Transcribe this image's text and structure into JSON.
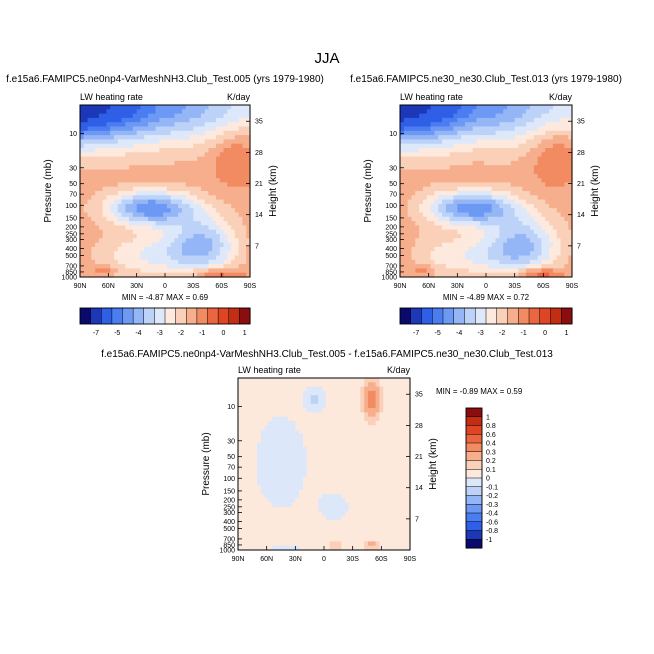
{
  "figure_title": "JJA",
  "chart_data": [
    {
      "type": "heatmap",
      "id": "panel-a",
      "title": "f.e15a6.FAMIPC5.ne0np4-VarMeshNH3.Club_Test.005 (yrs 1979-1980)",
      "variable": "LW heating rate",
      "units": "K/day",
      "ylabel": "Pressure (mb)",
      "ylabel_right": "Height (km)",
      "x_ticks": [
        "90N",
        "60N",
        "30N",
        "0",
        "30S",
        "60S",
        "90S"
      ],
      "xlim": [
        90,
        -90
      ],
      "y_ticks": [
        "10",
        "30",
        "50",
        "70",
        "100",
        "150",
        "200",
        "250",
        "300",
        "400",
        "500",
        "700",
        "850",
        "1000"
      ],
      "y_tick_values": [
        10,
        30,
        50,
        70,
        100,
        150,
        200,
        250,
        300,
        400,
        500,
        700,
        850,
        1000
      ],
      "height_ticks": [
        "35",
        "28",
        "21",
        "14",
        "7"
      ],
      "height_tick_values": [
        35,
        28,
        21,
        14,
        7
      ],
      "ylim": [
        1000,
        4
      ],
      "min": "-4.87",
      "max": "0.69",
      "stats": "MIN = -4.87  MAX = 0.69",
      "levels": [
        -7,
        -6,
        -5,
        -4.5,
        -4,
        -3.5,
        -3,
        -2.5,
        -2,
        -1.5,
        -1,
        -0.5,
        0,
        0.5,
        1
      ],
      "colorbar_labels": [
        "-7",
        "-5",
        "-4",
        "-3",
        "-2",
        "-1",
        "0",
        "1"
      ]
    },
    {
      "type": "heatmap",
      "id": "panel-b",
      "title": "f.e15a6.FAMIPC5.ne30_ne30.Club_Test.013 (yrs 1979-1980)",
      "variable": "LW heating rate",
      "units": "K/day",
      "ylabel": "Pressure (mb)",
      "ylabel_right": "Height (km)",
      "x_ticks": [
        "90N",
        "60N",
        "30N",
        "0",
        "30S",
        "60S",
        "90S"
      ],
      "xlim": [
        90,
        -90
      ],
      "y_ticks": [
        "10",
        "30",
        "50",
        "70",
        "100",
        "150",
        "200",
        "250",
        "300",
        "400",
        "500",
        "700",
        "850",
        "1000"
      ],
      "y_tick_values": [
        10,
        30,
        50,
        70,
        100,
        150,
        200,
        250,
        300,
        400,
        500,
        700,
        850,
        1000
      ],
      "height_ticks": [
        "35",
        "28",
        "21",
        "14",
        "7"
      ],
      "height_tick_values": [
        35,
        28,
        21,
        14,
        7
      ],
      "ylim": [
        1000,
        4
      ],
      "min": "-4.89",
      "max": "0.72",
      "stats": "MIN = -4.89  MAX = 0.72",
      "levels": [
        -7,
        -6,
        -5,
        -4.5,
        -4,
        -3.5,
        -3,
        -2.5,
        -2,
        -1.5,
        -1,
        -0.5,
        0,
        0.5,
        1
      ],
      "colorbar_labels": [
        "-7",
        "-5",
        "-4",
        "-3",
        "-2",
        "-1",
        "0",
        "1"
      ]
    },
    {
      "type": "heatmap",
      "id": "panel-diff",
      "title": "f.e15a6.FAMIPC5.ne0np4-VarMeshNH3.Club_Test.005 - f.e15a6.FAMIPC5.ne30_ne30.Club_Test.013",
      "variable": "LW heating rate",
      "units": "K/day",
      "ylabel": "Pressure (mb)",
      "ylabel_right": "Height (km)",
      "x_ticks": [
        "90N",
        "60N",
        "30N",
        "0",
        "30S",
        "60S",
        "90S"
      ],
      "xlim": [
        90,
        -90
      ],
      "y_ticks": [
        "10",
        "30",
        "50",
        "70",
        "100",
        "150",
        "200",
        "250",
        "300",
        "400",
        "500",
        "700",
        "850",
        "1000"
      ],
      "y_tick_values": [
        10,
        30,
        50,
        70,
        100,
        150,
        200,
        250,
        300,
        400,
        500,
        700,
        850,
        1000
      ],
      "height_ticks": [
        "35",
        "28",
        "21",
        "14",
        "7"
      ],
      "height_tick_values": [
        35,
        28,
        21,
        14,
        7
      ],
      "ylim": [
        1000,
        4
      ],
      "min": "-0.89",
      "max": "0.59",
      "stats": "MIN = -0.89  MAX = 0.59",
      "levels": [
        -1,
        -0.8,
        -0.6,
        -0.4,
        -0.3,
        -0.2,
        -0.1,
        0,
        0.1,
        0.2,
        0.3,
        0.4,
        0.6,
        0.8,
        1
      ],
      "colorbar_labels": [
        "1",
        "0.8",
        "0.6",
        "0.4",
        "0.3",
        "0.2",
        "0.1",
        "0",
        "-0.1",
        "-0.2",
        "-0.3",
        "-0.4",
        "-0.6",
        "-0.8",
        "-1"
      ]
    }
  ],
  "palettes": {
    "full": [
      "#0a0a6e",
      "#1c37b8",
      "#2f5fe6",
      "#4a7cf2",
      "#6d99f5",
      "#94b6f7",
      "#bcd2f8",
      "#dde8fa",
      "#fde9dd",
      "#fbd0b8",
      "#f7ae8d",
      "#f28a62",
      "#ea6540",
      "#dd4523",
      "#c22d14",
      "#8b0d0d"
    ],
    "diff": [
      "#0a0a6e",
      "#1c37b8",
      "#2f5fe6",
      "#4a7cf2",
      "#6d99f5",
      "#94b6f7",
      "#bcd2f8",
      "#dce8fa",
      "#fde8dc",
      "#fbd0b8",
      "#f7ae8d",
      "#f28a62",
      "#ea6540",
      "#dd4523",
      "#c22d14",
      "#8b0d0d"
    ]
  }
}
